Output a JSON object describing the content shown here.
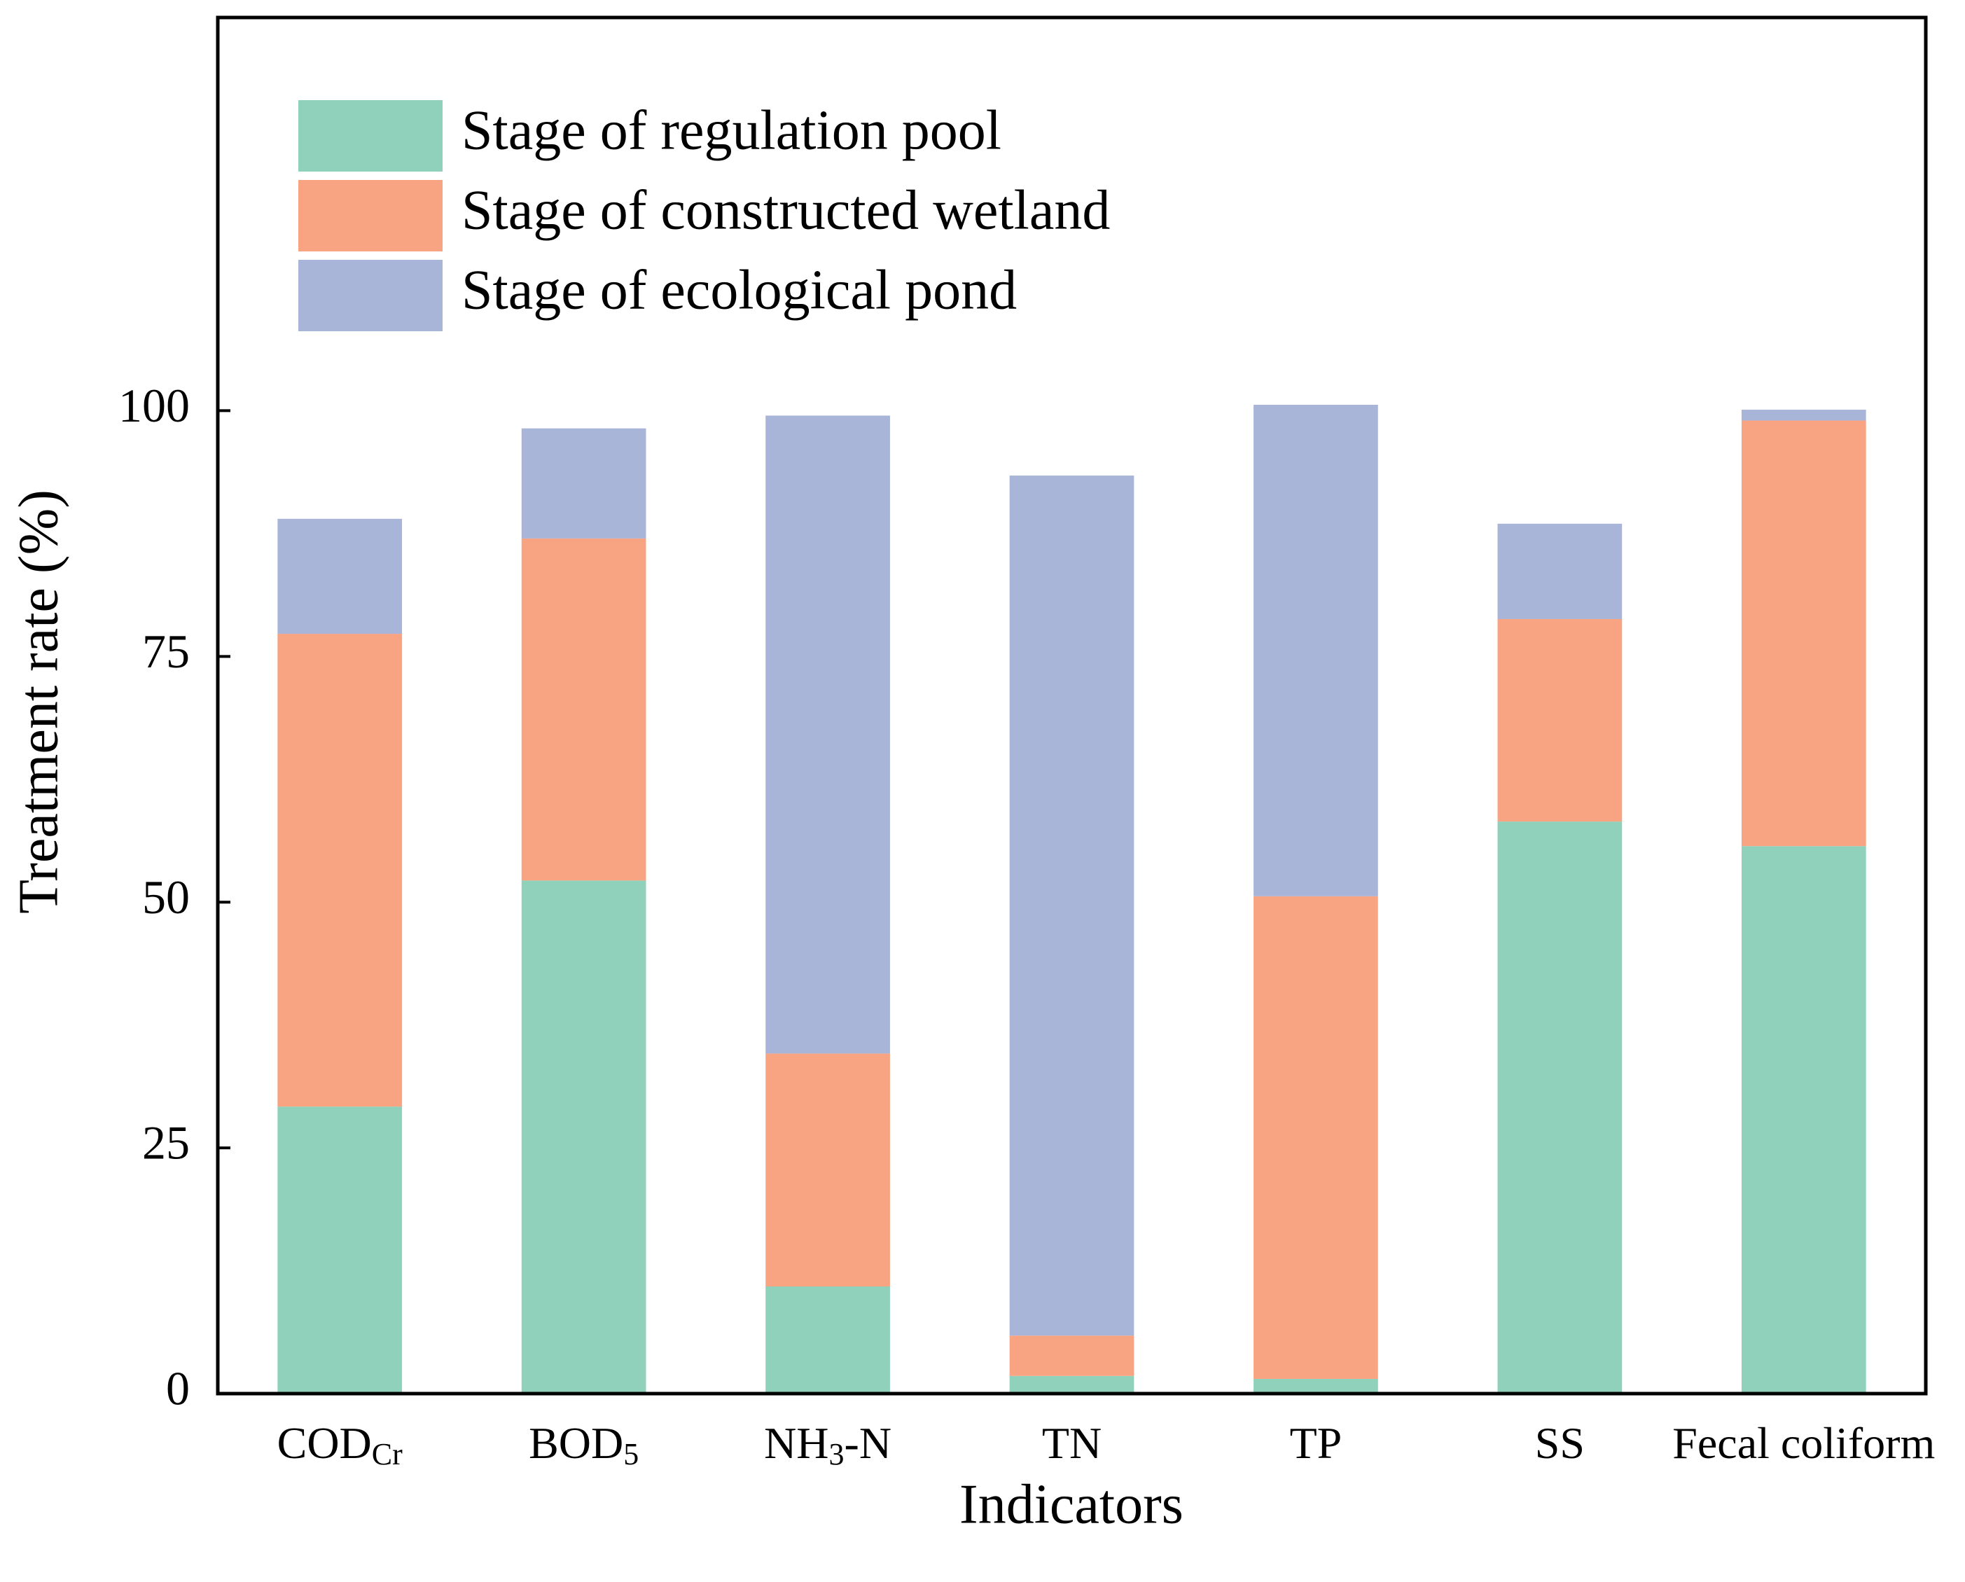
{
  "chart_data": {
    "type": "stacked_bar",
    "x_label": "Indicators",
    "y_label": "Treatment rate (%)",
    "categories": [
      [
        "COD",
        "Cr"
      ],
      [
        "BOD",
        "5"
      ],
      [
        "NH",
        "3",
        "-N"
      ],
      [
        "TN"
      ],
      [
        "TP"
      ],
      [
        "SS"
      ],
      [
        "Fecal coliform"
      ]
    ],
    "series": [
      {
        "name": "Stage of regulation pool",
        "color": "#8fd1bb",
        "values": [
          29.2,
          52.2,
          10.9,
          1.8,
          1.5,
          58.2,
          55.7
        ]
      },
      {
        "name": "Stage of constructed wetland",
        "color": "#f8a482",
        "values": [
          48.1,
          34.8,
          23.7,
          4.1,
          49.1,
          20.6,
          43.3
        ]
      },
      {
        "name": "Stage of ecological pond",
        "color": "#a8b5d8",
        "values": [
          11.7,
          11.2,
          64.9,
          87.5,
          50.0,
          9.7,
          1.1
        ]
      }
    ],
    "ylim": [
      0,
      140
    ],
    "yticks": [
      0,
      25,
      50,
      75,
      100
    ],
    "grid": false,
    "legend": "upper left"
  }
}
